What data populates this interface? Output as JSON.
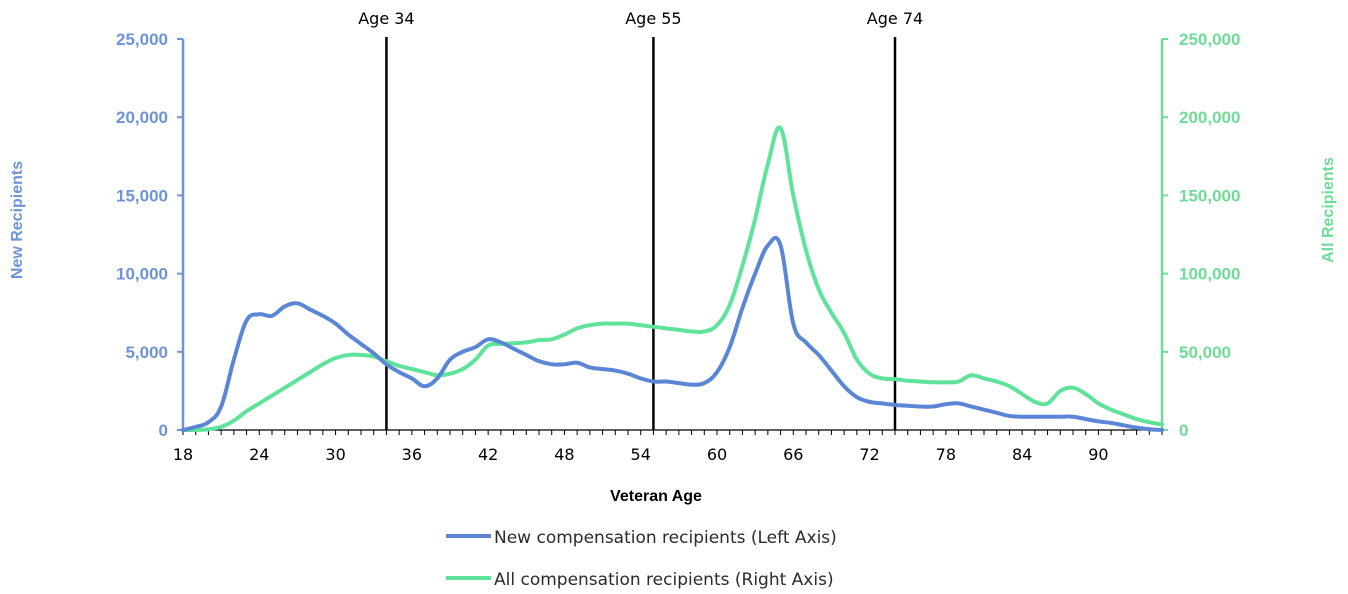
{
  "chart_data": {
    "type": "line",
    "xlabel": "Veteran Age",
    "ylabel_left": "New Recipients",
    "ylabel_right": "All Recipients",
    "xlim": [
      18,
      95
    ],
    "ylim_left": [
      0,
      25000
    ],
    "ylim_right": [
      0,
      250000
    ],
    "x_ticks": [
      18,
      24,
      30,
      36,
      42,
      48,
      54,
      60,
      66,
      72,
      78,
      84,
      90
    ],
    "y_left_ticks": [
      "0",
      "5,000",
      "10,000",
      "15,000",
      "20,000",
      "25,000"
    ],
    "y_left_tick_values": [
      0,
      5000,
      10000,
      15000,
      20000,
      25000
    ],
    "y_right_ticks": [
      "0",
      "50,000",
      "100,000",
      "150,000",
      "200,000",
      "250,000"
    ],
    "y_right_tick_values": [
      0,
      50000,
      100000,
      150000,
      200000,
      250000
    ],
    "reference_lines": [
      {
        "x": 34,
        "label": "Age 34"
      },
      {
        "x": 55,
        "label": "Age 55"
      },
      {
        "x": 74,
        "label": "Age 74"
      }
    ],
    "legend_position": "bottom",
    "series": [
      {
        "name": "New compensation recipients  (Left Axis)",
        "axis": "left",
        "color": "#5b86d6",
        "x": [
          18,
          19,
          20,
          21,
          22,
          23,
          24,
          25,
          26,
          27,
          28,
          29,
          30,
          31,
          32,
          33,
          34,
          35,
          36,
          37,
          38,
          39,
          40,
          41,
          42,
          43,
          44,
          45,
          46,
          47,
          48,
          49,
          50,
          51,
          52,
          53,
          54,
          55,
          56,
          57,
          58,
          59,
          60,
          61,
          62,
          63,
          64,
          65,
          66,
          67,
          68,
          69,
          70,
          71,
          72,
          73,
          74,
          75,
          76,
          77,
          78,
          79,
          80,
          81,
          82,
          83,
          84,
          85,
          86,
          87,
          88,
          89,
          90,
          91,
          92,
          93,
          94,
          95
        ],
        "y": [
          0,
          200,
          500,
          1500,
          4500,
          7000,
          7400,
          7300,
          7900,
          8100,
          7700,
          7300,
          6800,
          6100,
          5500,
          4900,
          4200,
          3700,
          3300,
          2800,
          3300,
          4500,
          5000,
          5300,
          5800,
          5600,
          5200,
          4800,
          4400,
          4200,
          4200,
          4300,
          4000,
          3900,
          3800,
          3600,
          3300,
          3100,
          3100,
          3000,
          2900,
          3000,
          3700,
          5300,
          7800,
          10000,
          11800,
          11800,
          6800,
          5600,
          4800,
          3800,
          2800,
          2100,
          1800,
          1700,
          1600,
          1550,
          1500,
          1500,
          1650,
          1700,
          1500,
          1300,
          1100,
          900,
          850,
          850,
          850,
          850,
          850,
          700,
          550,
          450,
          300,
          150,
          50,
          0
        ]
      },
      {
        "name": "All compensation recipients (Right Axis)",
        "axis": "right",
        "color": "#5fe39a",
        "x": [
          18,
          19,
          20,
          21,
          22,
          23,
          24,
          25,
          26,
          27,
          28,
          29,
          30,
          31,
          32,
          33,
          34,
          35,
          36,
          37,
          38,
          39,
          40,
          41,
          42,
          43,
          44,
          45,
          46,
          47,
          48,
          49,
          50,
          51,
          52,
          53,
          54,
          55,
          56,
          57,
          58,
          59,
          60,
          61,
          62,
          63,
          64,
          65,
          66,
          67,
          68,
          69,
          70,
          71,
          72,
          73,
          74,
          75,
          76,
          77,
          78,
          79,
          80,
          81,
          82,
          83,
          84,
          85,
          86,
          87,
          88,
          89,
          90,
          91,
          92,
          93,
          94,
          95
        ],
        "y": [
          0,
          0,
          500,
          2000,
          6000,
          12000,
          17000,
          22000,
          27000,
          32000,
          37000,
          42000,
          46000,
          48000,
          48000,
          47000,
          44000,
          41000,
          39000,
          37000,
          35000,
          36000,
          39000,
          45000,
          54000,
          55000,
          55500,
          56000,
          57500,
          58000,
          61000,
          65000,
          67000,
          68000,
          68000,
          68000,
          67000,
          66000,
          65000,
          64000,
          63000,
          63000,
          67000,
          80000,
          105000,
          135000,
          170000,
          193000,
          150000,
          115000,
          90000,
          75000,
          62000,
          45000,
          36000,
          33000,
          32500,
          31500,
          31000,
          30500,
          30500,
          31000,
          35000,
          33000,
          31000,
          28000,
          23000,
          18000,
          17000,
          25000,
          27000,
          23000,
          17000,
          13000,
          10000,
          7000,
          5000,
          3500
        ]
      }
    ]
  }
}
